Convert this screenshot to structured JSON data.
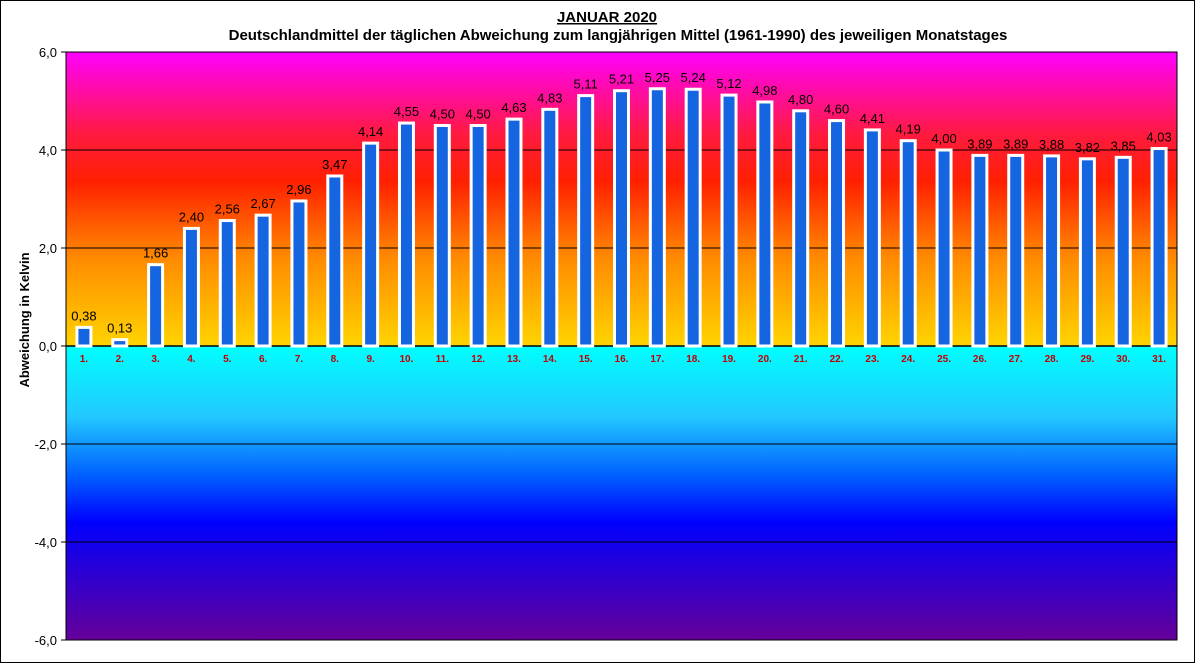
{
  "chart_data": {
    "type": "bar",
    "title": "JANUAR 2020",
    "subtitle": "Deutschlandmittel der täglichen Abweichung zum langjährigen Mittel (1961-1990) des jeweiligen Monatstages",
    "xlabel": "",
    "ylabel": "Abweichung in Kelvin",
    "ylim": [
      -6,
      6
    ],
    "yticks": [
      "6,0",
      "4,0",
      "2,0",
      "0,0",
      "-2,0",
      "-4,0",
      "-6,0"
    ],
    "ytick_values": [
      6,
      4,
      2,
      0,
      -2,
      -4,
      -6
    ],
    "categories": [
      "1.",
      "2.",
      "3.",
      "4.",
      "5.",
      "6.",
      "7.",
      "8.",
      "9.",
      "10.",
      "11.",
      "12.",
      "13.",
      "14.",
      "15.",
      "16.",
      "17.",
      "18.",
      "19.",
      "20.",
      "21.",
      "22.",
      "23.",
      "24.",
      "25.",
      "26.",
      "27.",
      "28.",
      "29.",
      "30.",
      "31."
    ],
    "values": [
      0.38,
      0.13,
      1.66,
      2.4,
      2.56,
      2.67,
      2.96,
      3.47,
      4.14,
      4.55,
      4.5,
      4.5,
      4.63,
      4.83,
      5.11,
      5.21,
      5.25,
      5.24,
      5.12,
      4.98,
      4.8,
      4.6,
      4.41,
      4.19,
      4.0,
      3.89,
      3.89,
      3.88,
      3.82,
      3.85,
      4.03
    ],
    "value_labels": [
      "0,38",
      "0,13",
      "1,66",
      "2,40",
      "2,56",
      "2,67",
      "2,96",
      "3,47",
      "4,14",
      "4,55",
      "4,50",
      "4,50",
      "4,63",
      "4,83",
      "5,11",
      "5,21",
      "5,25",
      "5,24",
      "5,12",
      "4,98",
      "4,80",
      "4,60",
      "4,41",
      "4,19",
      "4,00",
      "3,89",
      "3,89",
      "3,88",
      "3,82",
      "3,85",
      "4,03"
    ],
    "grid": true,
    "legend": "none",
    "colors": {
      "bar_fill": "#1565e0",
      "bar_border": "#ffffff",
      "tick_label": "#c00000",
      "background_top": "#ff00ff",
      "background_warm": "#ff2000",
      "background_zero": "#ffd400",
      "background_cool": "#00ffff",
      "background_cold": "#0000ff",
      "background_bottom": "#660099"
    }
  }
}
